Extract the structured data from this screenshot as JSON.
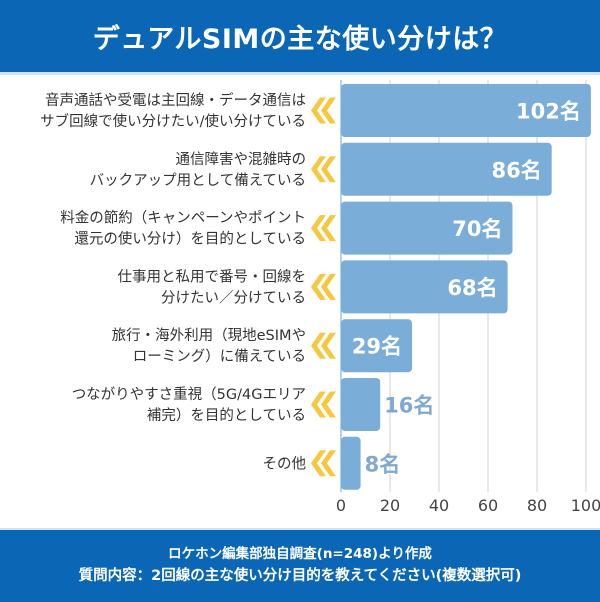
{
  "header": {
    "title": "デュアルSIMの主な使い分けは？"
  },
  "footer": {
    "source": "ロケホン編集部独自調査(n=248)より作成",
    "question": "質問内容：2回線の主な使い分け目的を教えてください(複数選択可)"
  },
  "colors": {
    "header_bg": "#0b66b5",
    "bar": "#7aadd8",
    "chevron": "#f5c842",
    "value_outside": "#7fa9cf",
    "grid": "#d0d0d0"
  },
  "chart_data": {
    "type": "bar",
    "orientation": "horizontal",
    "title": "デュアルSIMの主な使い分けは？",
    "xlabel": "",
    "ylabel": "",
    "xlim": [
      0,
      100
    ],
    "xticks": [
      0,
      20,
      40,
      60,
      80,
      100
    ],
    "grid": true,
    "unit_suffix": "名",
    "categories": [
      [
        "音声通話や受電は主回線・データ通信は",
        "サブ回線で使い分けたい/使い分けている"
      ],
      [
        "通信障害や混雑時の",
        "バックアップ用として備えている"
      ],
      [
        "料金の節約（キャンペーンやポイント",
        "還元の使い分け）を目的としている"
      ],
      [
        "仕事用と私用で番号・回線を",
        "分けたい／分けている"
      ],
      [
        "旅行・海外利用（現地eSIMや",
        "ローミング）に備えている"
      ],
      [
        "つながりやすさ重視（5G/4Gエリア",
        "補完）を目的としている"
      ],
      [
        "その他"
      ]
    ],
    "values": [
      102,
      86,
      70,
      68,
      29,
      16,
      8
    ],
    "value_labels": [
      "102名",
      "86名",
      "70名",
      "68名",
      "29名",
      "16名",
      "8名"
    ]
  }
}
